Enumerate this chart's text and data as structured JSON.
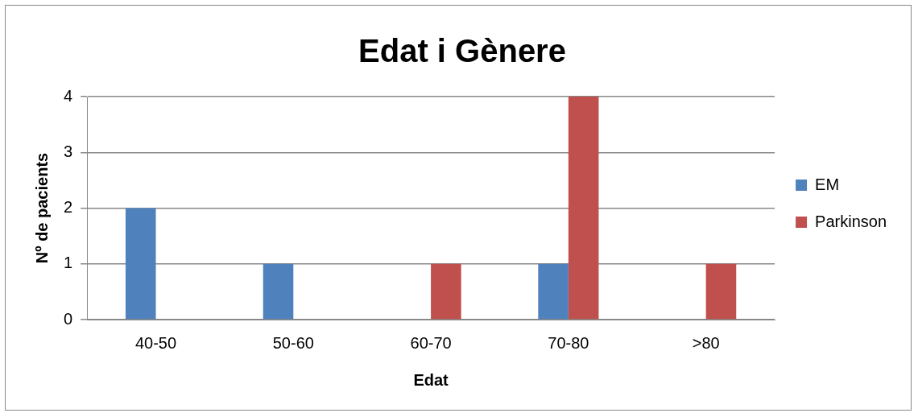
{
  "chart_data": {
    "type": "bar",
    "title": "Edat i Gènere",
    "xlabel": "Edat",
    "ylabel": "Nº de pacients",
    "categories": [
      "40-50",
      "50-60",
      "60-70",
      "70-80",
      ">80"
    ],
    "series": [
      {
        "name": "EM",
        "color": "#4f81bd",
        "values": [
          2,
          1,
          0,
          1,
          0
        ]
      },
      {
        "name": "Parkinson",
        "color": "#c0504d",
        "values": [
          0,
          0,
          1,
          4,
          1
        ]
      }
    ],
    "ylim": [
      0,
      4
    ],
    "yticks": [
      0,
      1,
      2,
      3,
      4
    ],
    "grid": "y",
    "legend": "right"
  }
}
